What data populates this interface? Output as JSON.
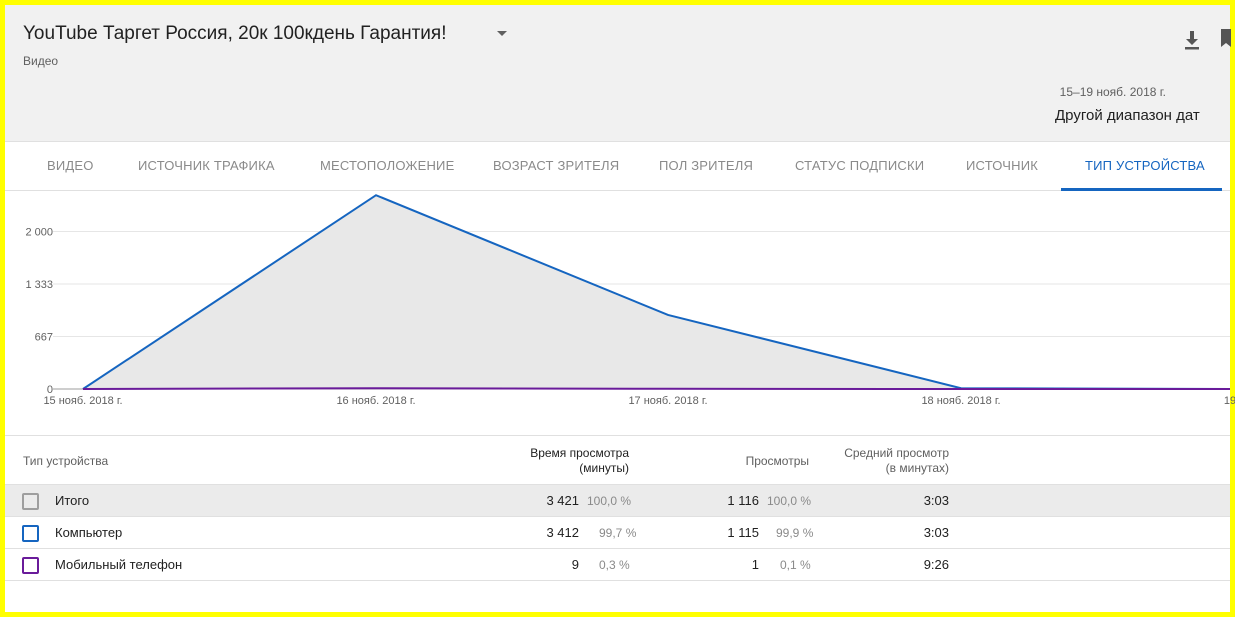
{
  "header": {
    "title": "YouTube Таргет Россия, 20к 100кдень Гарантия!",
    "subtitle": "Видео",
    "date_range": "15–19 нояб. 2018 г.",
    "date_link": "Другой диапазон дат",
    "icons": {
      "download": "download-icon",
      "flag": "flag-icon",
      "caret": "caret-down-icon"
    }
  },
  "tabs": [
    {
      "label": "Видео"
    },
    {
      "label": "Источник трафика"
    },
    {
      "label": "Местоположение"
    },
    {
      "label": "Возраст зрителя"
    },
    {
      "label": "Пол зрителя"
    },
    {
      "label": "Статус подписки"
    },
    {
      "label": "Источник"
    },
    {
      "label": "Тип устройства",
      "active": true
    }
  ],
  "chart_data": {
    "type": "area",
    "x": [
      "15 нояб. 2018 г.",
      "16 нояб. 2018 г.",
      "17 нояб. 2018 г.",
      "18 нояб. 2018 г.",
      "19"
    ],
    "yticks": [
      "2 000",
      "1 333",
      "667",
      "0"
    ],
    "ytick_values": [
      2000,
      1333,
      667,
      0
    ],
    "ylim": [
      0,
      2450
    ],
    "series": [
      {
        "name": "Компьютер",
        "values": [
          0,
          2460,
          940,
          10,
          0
        ],
        "color": "#1565c0"
      },
      {
        "name": "Мобильный телефон",
        "values": [
          0,
          10,
          3,
          0,
          0
        ],
        "color": "#6a1b9a"
      }
    ],
    "fill_color": "#e8e8e8",
    "grid": true
  },
  "table": {
    "headers": {
      "device": "Тип устройства",
      "watch_time": [
        "Время просмотра",
        "(минуты)"
      ],
      "views": "Просмотры",
      "avg": [
        "Средний просмотр",
        "(в минутах)"
      ]
    },
    "rows": [
      {
        "name": "Итого",
        "watch": "3 421",
        "watch_pct": "100,0 %",
        "views": "1 116",
        "views_pct": "100,0 %",
        "avg": "3:03",
        "color": "#9e9e9e",
        "total": true
      },
      {
        "name": "Компьютер",
        "watch": "3 412",
        "watch_pct": "99,7 %",
        "views": "1 115",
        "views_pct": "99,9 %",
        "avg": "3:03",
        "color": "#1565c0"
      },
      {
        "name": "Мобильный телефон",
        "watch": "9",
        "watch_pct": "0,3 %",
        "views": "1",
        "views_pct": "0,1 %",
        "avg": "9:26",
        "color": "#6a1b9a"
      }
    ]
  }
}
